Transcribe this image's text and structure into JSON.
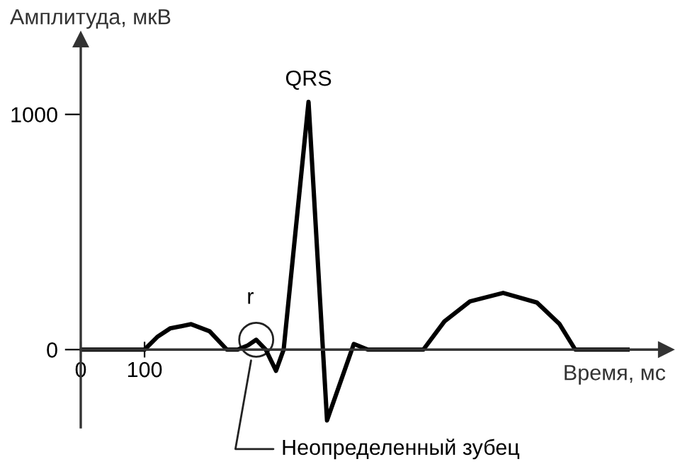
{
  "chart_data": {
    "type": "line",
    "xlabel": "Время, мс",
    "ylabel": "Амплитуда, мкВ",
    "x": [
      0,
      100,
      120,
      140,
      173,
      202,
      229,
      246,
      262,
      275,
      290,
      306,
      318,
      357,
      386,
      428,
      450,
      537,
      570,
      610,
      662,
      715,
      750,
      775,
      857
    ],
    "series": [
      {
        "color": "#000000",
        "values": [
          0,
          0,
          54,
          90,
          108,
          78,
          0,
          0,
          18,
          42,
          0,
          -90,
          0,
          1053,
          -301,
          24,
          0,
          0,
          120,
          205,
          241,
          200,
          110,
          0,
          0
        ]
      }
    ],
    "xlim": [
      0,
      917
    ],
    "ylim": [
      -330,
      1318
    ],
    "xticks": [
      0,
      100
    ],
    "yticks": [
      0,
      1000
    ],
    "grid": false,
    "legend": false,
    "marker": "none",
    "line_style": "solid",
    "annotations": [
      {
        "text": "QRS",
        "x": 357,
        "y": 1053
      },
      {
        "text": "r",
        "x": 275,
        "y": 42
      },
      {
        "text": "Неопределенный зубец",
        "x": 268,
        "y": -30
      }
    ]
  }
}
